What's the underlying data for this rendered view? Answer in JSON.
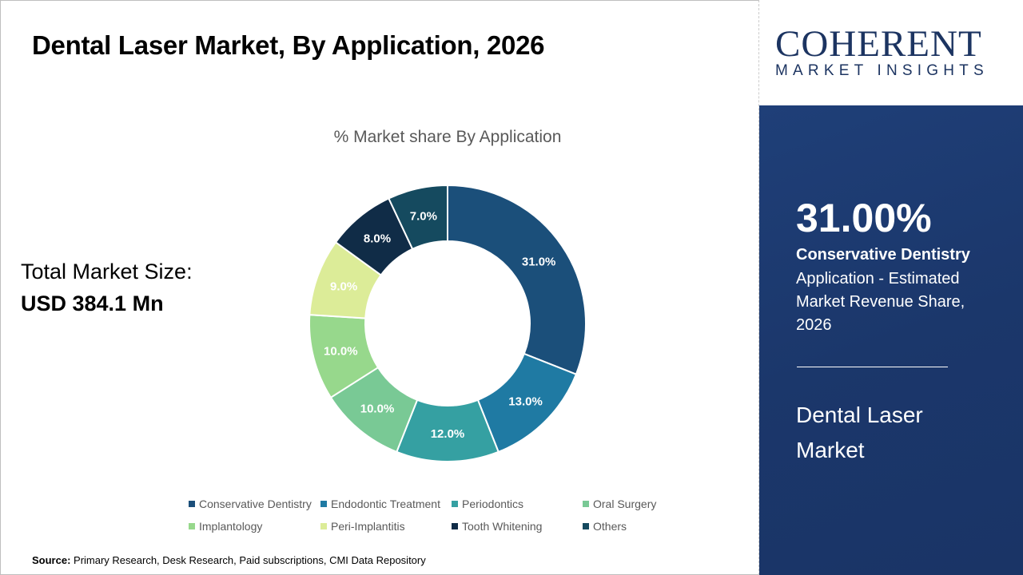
{
  "header": {
    "title": "Dental Laser Market, By Application, 2026"
  },
  "total": {
    "label": "Total Market Size:",
    "value": "USD 384.1 Mn"
  },
  "source": {
    "label": "Source:",
    "text": "Primary Research, Desk Research, Paid subscriptions, CMI Data Repository"
  },
  "logo": {
    "line1": "COHERENT",
    "line2": "MARKET INSIGHTS"
  },
  "panel": {
    "percent": "31.00%",
    "segment": "Conservative Dentistry",
    "description": "Application - Estimated Market Revenue Share, 2026",
    "market": "Dental Laser Market"
  },
  "chart_data": {
    "type": "pie",
    "variant": "donut",
    "title": "% Market share By Application",
    "categories": [
      "Conservative Dentistry",
      "Endodontic Treatment",
      "Periodontics",
      "Oral Surgery",
      "Implantology",
      "Peri-Implantitis",
      "Tooth Whitening",
      "Others"
    ],
    "values": [
      31.0,
      13.0,
      12.0,
      10.0,
      10.0,
      9.0,
      8.0,
      7.0
    ],
    "labels": [
      "31.0%",
      "13.0%",
      "12.0%",
      "10.0%",
      "10.0%",
      "9.0%",
      "8.0%",
      "7.0%"
    ],
    "colors": [
      "#1b4f7a",
      "#1f7aa3",
      "#35a0a2",
      "#79c995",
      "#97d88c",
      "#dcec98",
      "#102c47",
      "#154a5f"
    ],
    "legend": "bottom"
  }
}
